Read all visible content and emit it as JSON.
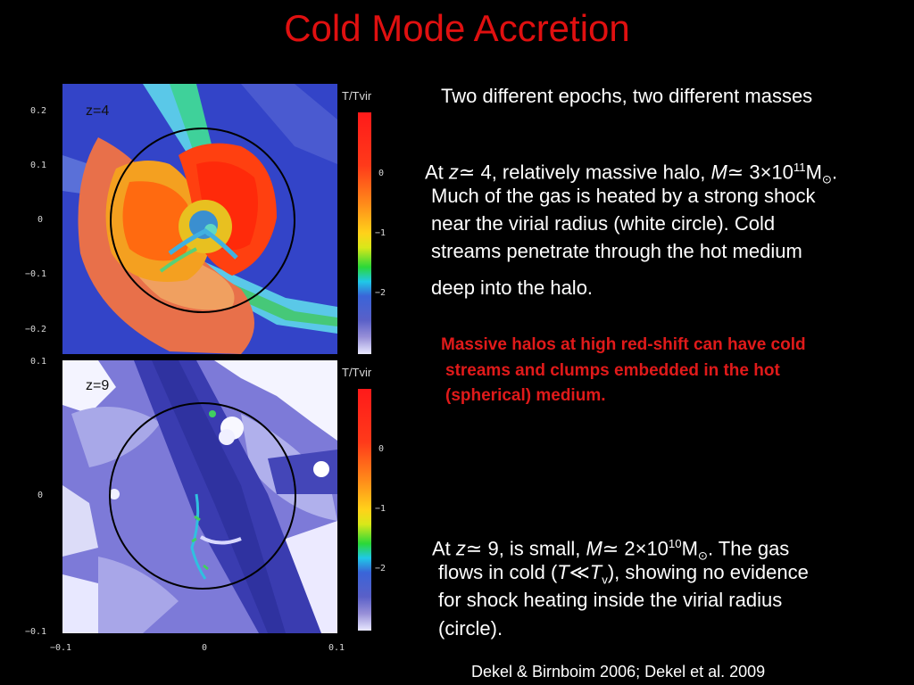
{
  "title": "Cold Mode Accretion",
  "top_panel": {
    "label": "z=4",
    "colorbar_title": "T/Tvir",
    "colorbar_ticks": [
      "0",
      "−1",
      "−2"
    ],
    "y_ticks": [
      "0.2",
      "0.1",
      "0",
      "−0.1",
      "−0.2"
    ]
  },
  "bottom_panel": {
    "label": "z=9",
    "colorbar_title": "T/Tvir",
    "colorbar_ticks": [
      "0",
      "−1",
      "−2"
    ],
    "y_ticks": [
      "0.1",
      "0",
      "−0.1"
    ],
    "x_ticks": [
      "−0.1",
      "0",
      "0.1"
    ]
  },
  "text": {
    "heading": "Two different epochs, two different masses",
    "p1_pre": "At ",
    "p1_z": "z",
    "p1_a": "≃ 4, relatively massive halo, ",
    "p1_m": "M",
    "p1_b": "≃ 3×10",
    "p1_exp": "11",
    "p1_c": "M",
    "p1_sun": "⊙",
    "p1_d": ".",
    "p1_line2": "Much of the gas is heated by a strong shock",
    "p1_line3": "near the virial radius (white circle). Cold",
    "p1_line4": "streams penetrate through the hot medium",
    "p1_line5": "deep into the halo.",
    "red_line1": "Massive halos at high red-shift can have cold",
    "red_line2": "streams and clumps embedded in the hot",
    "red_line3": "(spherical) medium.",
    "p2_pre": "At ",
    "p2_z": "z",
    "p2_a": "≃ 9, is small, ",
    "p2_m": "M",
    "p2_b": "≃ 2×10",
    "p2_exp": "10",
    "p2_c": "M",
    "p2_sun": "⊙",
    "p2_d": ". The gas",
    "p2_line2a": "flows in cold (",
    "p2_T": "T",
    "p2_ll": "≪",
    "p2_T2": "T",
    "p2_v": "v",
    "p2_line2b": "), showing no evidence",
    "p2_line3": "for shock heating inside the virial radius",
    "p2_line4": "(circle).",
    "citation": "Dekel & Birnboim 2006; Dekel et al. 2009"
  },
  "colors": {
    "title": "#e01010",
    "highlight": "#e01a1a",
    "background": "#000000"
  }
}
